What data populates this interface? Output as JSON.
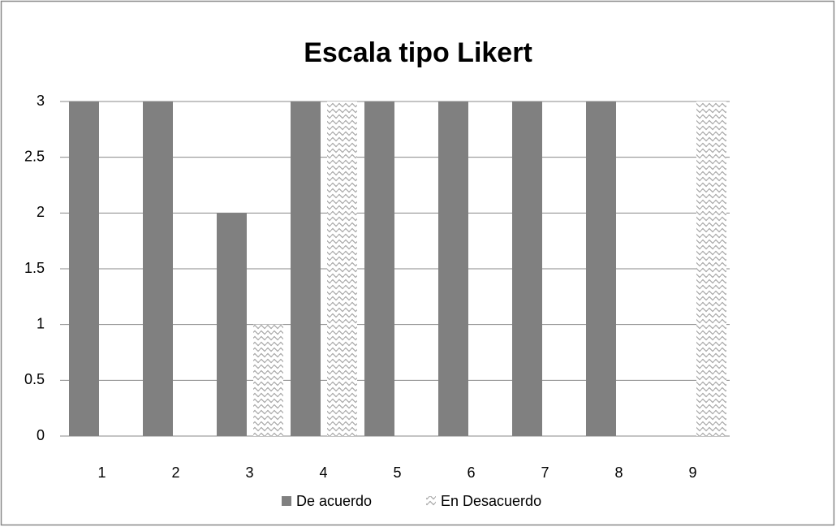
{
  "chart_data": {
    "type": "bar",
    "title": "Escala tipo Likert",
    "categories": [
      "1",
      "2",
      "3",
      "4",
      "5",
      "6",
      "7",
      "8",
      "9"
    ],
    "series": [
      {
        "name": "De acuerdo",
        "color": "#808080",
        "values": [
          3,
          3,
          2,
          3,
          3,
          3,
          3,
          3,
          0
        ]
      },
      {
        "name": "En Desacuerdo",
        "color": "#a6a6a6",
        "pattern": "zigzag",
        "values": [
          0,
          0,
          1,
          3,
          0,
          0,
          0,
          0,
          3
        ]
      }
    ],
    "ylim": [
      0,
      3
    ],
    "yticks": [
      0,
      0.5,
      1,
      1.5,
      2,
      2.5,
      3
    ],
    "grid": true,
    "legend": "bottom"
  }
}
